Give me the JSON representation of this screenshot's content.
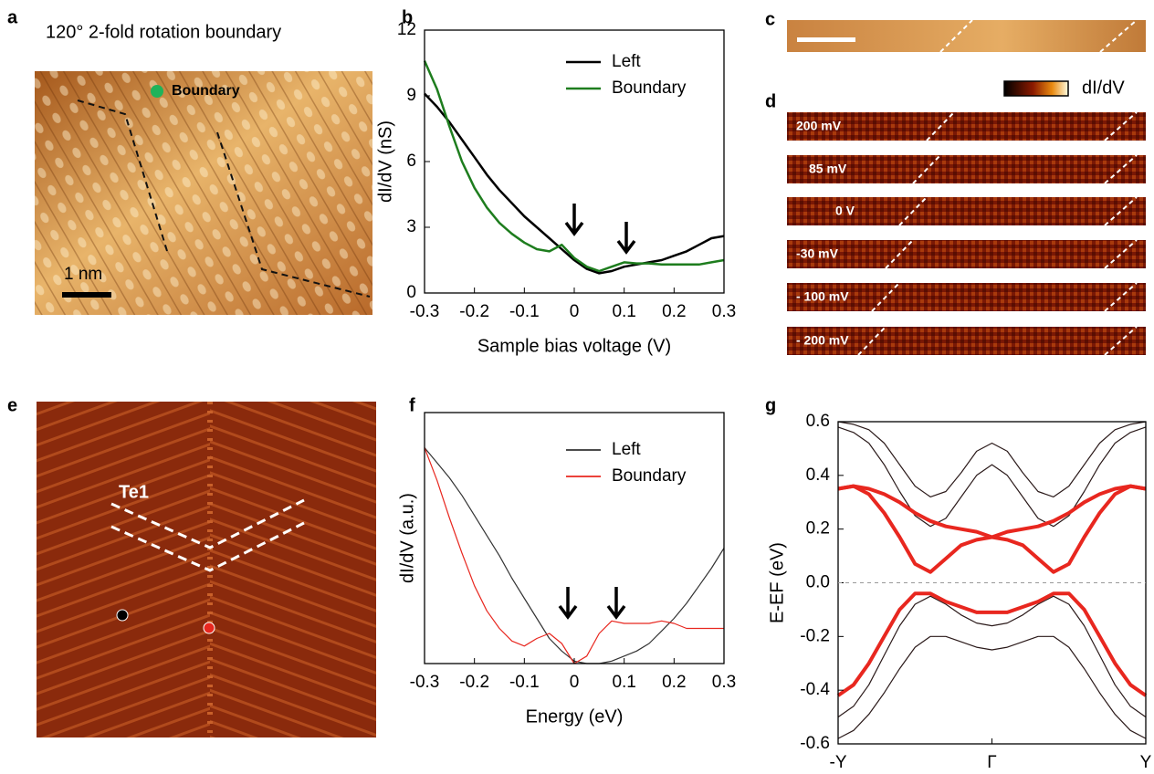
{
  "panel_labels": [
    "a",
    "b",
    "c",
    "d",
    "e",
    "f",
    "g"
  ],
  "panel_a": {
    "title": "120° 2-fold rotation boundary",
    "marker_label": "Boundary",
    "scale_bar": "1 nm"
  },
  "panel_d": {
    "colorbar_label": "dI/dV",
    "maps": [
      "200 mV",
      "85 mV",
      "0 V",
      "-30 mV",
      "- 100 mV",
      "- 200 mV"
    ]
  },
  "panel_e": {
    "label": "Te1"
  },
  "chart_data": [
    {
      "type": "line",
      "xlabel": "Sample bias voltage (V)",
      "ylabel": "dI/dV (nS)",
      "x": [
        -0.3,
        -0.275,
        -0.25,
        -0.225,
        -0.2,
        -0.175,
        -0.15,
        -0.125,
        -0.1,
        -0.075,
        -0.05,
        -0.025,
        0,
        0.025,
        0.05,
        0.075,
        0.1,
        0.125,
        0.15,
        0.175,
        0.2,
        0.225,
        0.25,
        0.275,
        0.3
      ],
      "series": [
        {
          "name": "Left",
          "color": "#000000",
          "values": [
            9.1,
            8.5,
            7.8,
            7.0,
            6.2,
            5.4,
            4.7,
            4.1,
            3.5,
            3.0,
            2.5,
            2.0,
            1.5,
            1.1,
            0.9,
            1.0,
            1.2,
            1.3,
            1.4,
            1.5,
            1.7,
            1.9,
            2.2,
            2.5,
            2.6
          ]
        },
        {
          "name": "Boundary",
          "color": "#1e7d1e",
          "values": [
            10.6,
            9.3,
            7.6,
            6.0,
            4.8,
            3.9,
            3.2,
            2.7,
            2.3,
            2.0,
            1.9,
            2.2,
            1.6,
            1.2,
            1.0,
            1.2,
            1.4,
            1.35,
            1.35,
            1.3,
            1.3,
            1.3,
            1.3,
            1.4,
            1.5
          ]
        }
      ],
      "xlim": [
        -0.3,
        0.3
      ],
      "xticks": [
        -0.3,
        -0.2,
        -0.1,
        0,
        0.1,
        0.2,
        0.3
      ],
      "ylim": [
        0,
        12
      ],
      "yticks": [
        0,
        3,
        6,
        9,
        12
      ],
      "legend": "top-right"
    },
    {
      "type": "line",
      "xlabel": "Energy (eV)",
      "ylabel": "dI/dV (a.u.)",
      "x": [
        -0.3,
        -0.275,
        -0.25,
        -0.225,
        -0.2,
        -0.175,
        -0.15,
        -0.125,
        -0.1,
        -0.075,
        -0.05,
        -0.025,
        0,
        0.025,
        0.05,
        0.075,
        0.1,
        0.125,
        0.15,
        0.175,
        0.2,
        0.225,
        0.25,
        0.275,
        0.3
      ],
      "series": [
        {
          "name": "Left",
          "color": "#333333",
          "values": [
            0.86,
            0.8,
            0.74,
            0.67,
            0.59,
            0.51,
            0.43,
            0.34,
            0.26,
            0.18,
            0.1,
            0.05,
            0.01,
            0.0,
            0.0,
            0.01,
            0.03,
            0.05,
            0.08,
            0.13,
            0.18,
            0.24,
            0.31,
            0.38,
            0.46
          ]
        },
        {
          "name": "Boundary",
          "color": "#e8271f",
          "values": [
            0.86,
            0.73,
            0.58,
            0.44,
            0.31,
            0.21,
            0.14,
            0.09,
            0.07,
            0.1,
            0.12,
            0.08,
            0.0,
            0.03,
            0.12,
            0.17,
            0.16,
            0.16,
            0.16,
            0.17,
            0.16,
            0.14,
            0.14,
            0.14,
            0.14
          ]
        }
      ],
      "xlim": [
        -0.3,
        0.3
      ],
      "xticks": [
        -0.3,
        -0.2,
        -0.1,
        0,
        0.1,
        0.2,
        0.3
      ],
      "ylim": [
        0,
        1
      ],
      "legend": "top-right"
    },
    {
      "type": "bands",
      "ylabel": "E-EF (eV)",
      "x": [
        -1,
        -0.9,
        -0.8,
        -0.7,
        -0.6,
        -0.5,
        -0.4,
        -0.3,
        -0.2,
        -0.1,
        0,
        0.1,
        0.2,
        0.3,
        0.4,
        0.5,
        0.6,
        0.7,
        0.8,
        0.9,
        1
      ],
      "series": [
        {
          "color": "#2b1a1a",
          "values": [
            0.58,
            0.56,
            0.52,
            0.44,
            0.34,
            0.25,
            0.21,
            0.24,
            0.32,
            0.4,
            0.44,
            0.4,
            0.32,
            0.24,
            0.21,
            0.25,
            0.34,
            0.44,
            0.52,
            0.56,
            0.58
          ]
        },
        {
          "color": "#2b1a1a",
          "values": [
            0.6,
            0.59,
            0.57,
            0.52,
            0.44,
            0.36,
            0.32,
            0.34,
            0.41,
            0.49,
            0.52,
            0.49,
            0.41,
            0.34,
            0.32,
            0.36,
            0.44,
            0.52,
            0.57,
            0.59,
            0.6
          ]
        },
        {
          "color": "#2b1a1a",
          "values": [
            -0.5,
            -0.46,
            -0.38,
            -0.27,
            -0.16,
            -0.08,
            -0.05,
            -0.08,
            -0.12,
            -0.15,
            -0.16,
            -0.15,
            -0.12,
            -0.08,
            -0.05,
            -0.08,
            -0.16,
            -0.27,
            -0.38,
            -0.46,
            -0.5
          ]
        },
        {
          "color": "#2b1a1a",
          "values": [
            -0.58,
            -0.55,
            -0.49,
            -0.41,
            -0.32,
            -0.24,
            -0.2,
            -0.2,
            -0.22,
            -0.24,
            -0.25,
            -0.24,
            -0.22,
            -0.2,
            -0.2,
            -0.24,
            -0.32,
            -0.41,
            -0.49,
            -0.55,
            -0.58
          ]
        },
        {
          "color": "#e8271f",
          "values": [
            0.35,
            0.36,
            0.33,
            0.26,
            0.17,
            0.07,
            0.04,
            0.09,
            0.14,
            0.16,
            0.17,
            0.19,
            0.2,
            0.21,
            0.23,
            0.26,
            0.3,
            0.33,
            0.35,
            0.36,
            0.35
          ]
        },
        {
          "color": "#e8271f",
          "values": [
            0.35,
            0.36,
            0.35,
            0.33,
            0.3,
            0.26,
            0.23,
            0.21,
            0.2,
            0.19,
            0.17,
            0.16,
            0.14,
            0.09,
            0.04,
            0.07,
            0.17,
            0.26,
            0.33,
            0.36,
            0.35
          ]
        },
        {
          "color": "#e8271f",
          "values": [
            -0.42,
            -0.38,
            -0.3,
            -0.2,
            -0.1,
            -0.04,
            -0.04,
            -0.07,
            -0.09,
            -0.11,
            -0.11,
            -0.11,
            -0.09,
            -0.07,
            -0.04,
            -0.04,
            -0.1,
            -0.2,
            -0.3,
            -0.38,
            -0.42
          ]
        }
      ],
      "xlim": [
        -1,
        1
      ],
      "xticks": [
        {
          "value": -1,
          "label": "-Y"
        },
        {
          "value": 0,
          "label": "Γ"
        },
        {
          "value": 1,
          "label": "Y"
        }
      ],
      "ylim": [
        -0.6,
        0.6
      ],
      "yticks": [
        0.6,
        0.4,
        0.2,
        {
          "value": 0,
          "label": "0.0"
        },
        -0.2,
        -0.4,
        -0.6
      ]
    }
  ]
}
